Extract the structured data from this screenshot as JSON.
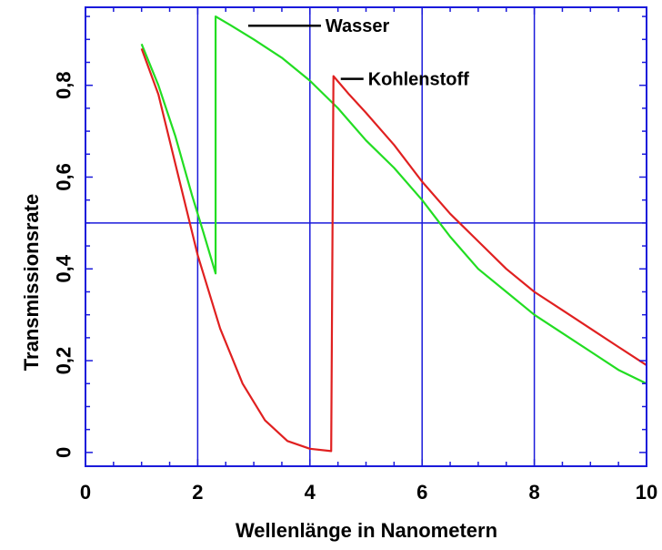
{
  "chart_data": {
    "type": "line",
    "xlabel": "Wellenlänge in Nanometern",
    "ylabel": "Transmissionsrate",
    "xlim": [
      0,
      10
    ],
    "ylim": [
      -0.03,
      0.97
    ],
    "x_ticks": [
      0,
      2,
      4,
      6,
      8,
      10
    ],
    "x_tick_labels": [
      "0",
      "2",
      "4",
      "6",
      "8",
      "10"
    ],
    "y_ticks": [
      0,
      0.2,
      0.4,
      0.6,
      0.8
    ],
    "y_tick_labels": [
      "0",
      "0,2",
      "0,4",
      "0,6",
      "0,8"
    ],
    "vertical_gridlines_x": [
      2,
      4,
      6,
      8
    ],
    "horizontal_reference_y": 0.5,
    "grid": "partial",
    "legend_placement": "inline-labels",
    "colors": {
      "frame": "#1a1adb",
      "wasser": "#22dd22",
      "kohlenstoff": "#e02020"
    },
    "series": [
      {
        "name": "Wasser",
        "x": [
          1.0,
          1.3,
          1.6,
          1.9,
          2.1,
          2.32,
          2.32,
          2.6,
          3.0,
          3.5,
          4.0,
          4.5,
          5.0,
          5.5,
          6.0,
          6.5,
          7.0,
          7.5,
          8.0,
          8.5,
          9.0,
          9.5,
          10.0
        ],
        "values": [
          0.89,
          0.8,
          0.69,
          0.56,
          0.48,
          0.39,
          0.95,
          0.93,
          0.9,
          0.86,
          0.81,
          0.75,
          0.68,
          0.62,
          0.55,
          0.47,
          0.4,
          0.35,
          0.3,
          0.26,
          0.22,
          0.18,
          0.15
        ]
      },
      {
        "name": "Kohlenstoff",
        "x": [
          1.0,
          1.3,
          1.6,
          2.0,
          2.4,
          2.8,
          3.2,
          3.6,
          4.0,
          4.38,
          4.42,
          4.7,
          5.0,
          5.5,
          6.0,
          6.5,
          7.0,
          7.5,
          8.0,
          8.5,
          9.0,
          9.5,
          10.0
        ],
        "values": [
          0.88,
          0.78,
          0.63,
          0.43,
          0.27,
          0.15,
          0.07,
          0.025,
          0.008,
          0.003,
          0.82,
          0.78,
          0.74,
          0.67,
          0.59,
          0.52,
          0.46,
          0.4,
          0.35,
          0.31,
          0.27,
          0.23,
          0.19
        ]
      }
    ],
    "annotations": [
      {
        "text": "Wasser",
        "series": "Wasser",
        "anchor_x": 2.9,
        "anchor_y": 0.92
      },
      {
        "text": "Kohlenstoff",
        "series": "Kohlenstoff",
        "anchor_x": 4.55,
        "anchor_y": 0.8
      }
    ]
  }
}
